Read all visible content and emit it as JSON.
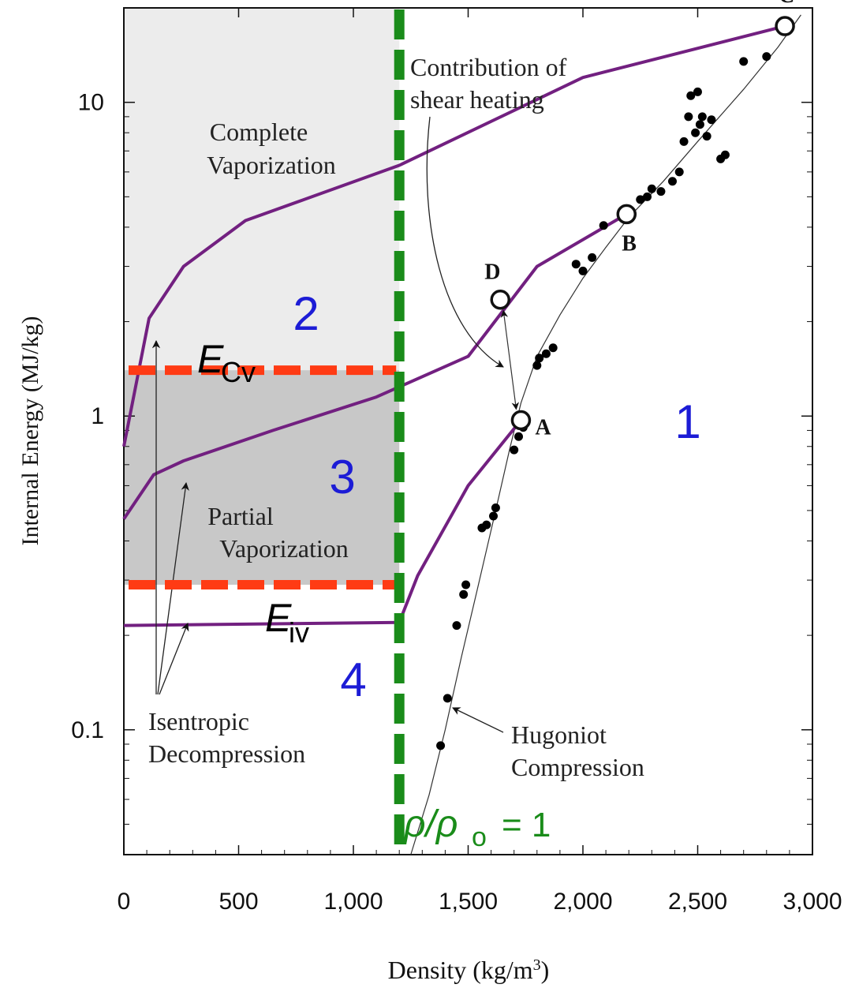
{
  "chart_data": {
    "type": "scatter",
    "title": "",
    "xlabel": "Density (kg/m",
    "xlabel_sup": "3",
    "xlabel_close": ")",
    "ylabel": "Internal Energy (MJ/kg)",
    "x_scale": "linear",
    "y_scale": "log",
    "xlim": [
      0,
      3000
    ],
    "ylim": [
      0.04,
      20
    ],
    "x_ticks": [
      0,
      500,
      1000,
      1500,
      2000,
      2500,
      3000
    ],
    "x_tick_labels": [
      "0",
      "500",
      "1,000",
      "1,500",
      "2,000",
      "2,500",
      "3,000"
    ],
    "y_ticks": [
      0.1,
      1,
      10
    ],
    "y_tick_labels": [
      "0.1",
      "1",
      "10"
    ],
    "colors": {
      "isentrope": "#722080",
      "reference_density": "#1a8c1a",
      "energy_thresholds": "#ff3b14",
      "complete_vaporization_fill": "#ececec",
      "partial_vaporization_fill": "#c8c8c8",
      "region_numbers": "#1c1cd6",
      "hugoniot_points": "#000000"
    },
    "hugoniot_curve": {
      "label_line1": "Hugoniot",
      "label_line2": "Compression",
      "points": [
        [
          1250,
          0.04
        ],
        [
          1330,
          0.062
        ],
        [
          1400,
          0.1
        ],
        [
          1470,
          0.17
        ],
        [
          1540,
          0.28
        ],
        [
          1620,
          0.5
        ],
        [
          1680,
          0.78
        ],
        [
          1730,
          1.1
        ],
        [
          1800,
          1.55
        ],
        [
          1900,
          2.1
        ],
        [
          2000,
          2.75
        ],
        [
          2100,
          3.45
        ],
        [
          2200,
          4.3
        ],
        [
          2350,
          5.6
        ],
        [
          2500,
          7.5
        ],
        [
          2700,
          11
        ],
        [
          2850,
          15
        ],
        [
          2950,
          19
        ]
      ]
    },
    "hugoniot_data": [
      [
        1380,
        0.089
      ],
      [
        1410,
        0.126
      ],
      [
        1450,
        0.215
      ],
      [
        1480,
        0.27
      ],
      [
        1490,
        0.29
      ],
      [
        1560,
        0.44
      ],
      [
        1580,
        0.45
      ],
      [
        1610,
        0.48
      ],
      [
        1620,
        0.51
      ],
      [
        1700,
        0.78
      ],
      [
        1720,
        0.86
      ],
      [
        1740,
        0.92
      ],
      [
        1800,
        1.45
      ],
      [
        1810,
        1.53
      ],
      [
        1840,
        1.58
      ],
      [
        1870,
        1.65
      ],
      [
        1970,
        3.05
      ],
      [
        2000,
        2.9
      ],
      [
        2040,
        3.2
      ],
      [
        2090,
        4.05
      ],
      [
        2250,
        4.9
      ],
      [
        2280,
        5.0
      ],
      [
        2300,
        5.3
      ],
      [
        2340,
        5.2
      ],
      [
        2390,
        5.6
      ],
      [
        2420,
        6.0
      ],
      [
        2440,
        7.5
      ],
      [
        2460,
        9.0
      ],
      [
        2470,
        10.5
      ],
      [
        2490,
        8.0
      ],
      [
        2500,
        10.8
      ],
      [
        2510,
        8.5
      ],
      [
        2520,
        9.0
      ],
      [
        2540,
        7.8
      ],
      [
        2560,
        8.8
      ],
      [
        2600,
        6.6
      ],
      [
        2620,
        6.8
      ],
      [
        2700,
        13.5
      ],
      [
        2800,
        14.0
      ]
    ],
    "states": [
      {
        "name": "A",
        "x": 1730,
        "y": 0.97
      },
      {
        "name": "B",
        "x": 2190,
        "y": 4.4
      },
      {
        "name": "C",
        "x": 2880,
        "y": 17.5
      },
      {
        "name": "D",
        "x": 1640,
        "y": 2.35
      }
    ],
    "isentropes": [
      {
        "from": "C",
        "points": [
          [
            2880,
            17.5
          ],
          [
            2000,
            12
          ],
          [
            1200,
            6.3
          ],
          [
            530,
            4.2
          ],
          [
            260,
            3.0
          ],
          [
            110,
            2.05
          ],
          [
            0,
            0.8
          ]
        ]
      },
      {
        "from": "B",
        "points": [
          [
            2190,
            4.4
          ],
          [
            1800,
            3.0
          ],
          [
            1500,
            1.55
          ],
          [
            1100,
            1.15
          ],
          [
            650,
            0.9
          ],
          [
            260,
            0.72
          ],
          [
            130,
            0.65
          ],
          [
            0,
            0.47
          ]
        ]
      },
      {
        "from": "A",
        "points": [
          [
            1730,
            0.97
          ],
          [
            1500,
            0.6
          ],
          [
            1280,
            0.31
          ],
          [
            1200,
            0.22
          ],
          [
            0,
            0.215
          ]
        ]
      }
    ],
    "reference_density": {
      "x": 1200,
      "label_rho": "ρ/ρ",
      "label_sub": "o",
      "label_value": " = 1"
    },
    "thresholds": [
      {
        "name": "E",
        "sub": "Cv",
        "y": 1.4
      },
      {
        "name": "E",
        "sub": "iv",
        "y": 0.29
      }
    ],
    "regions": [
      "1",
      "2",
      "3",
      "4"
    ],
    "annotations": {
      "complete_vaporization": [
        "Complete",
        "Vaporization"
      ],
      "partial_vaporization": [
        "Partial",
        "Vaporization"
      ],
      "isentropic_decompression": [
        "Isentropic",
        "Decompression"
      ],
      "shear_heating": [
        "Contribution of",
        "shear heating"
      ]
    }
  }
}
